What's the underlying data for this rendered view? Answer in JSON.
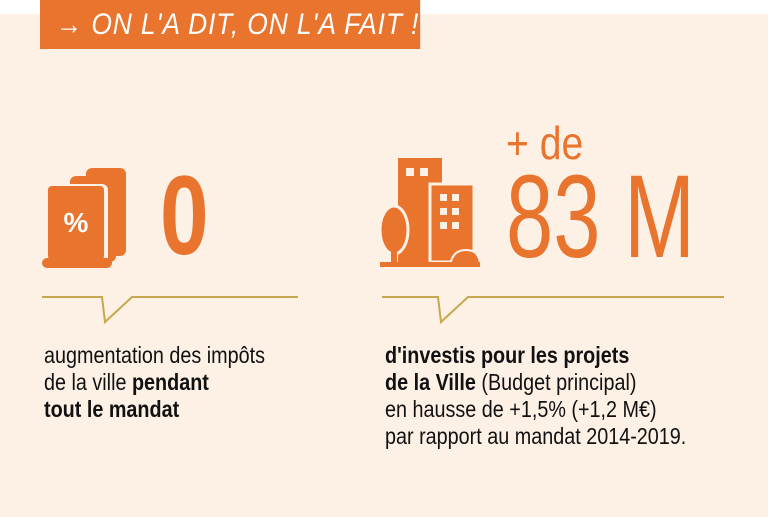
{
  "banner": {
    "arrow": "→",
    "text": "ON L'A DIT, ON L'A FAIT !"
  },
  "colors": {
    "accent": "#e8742e",
    "background": "#fdf1e6",
    "line": "#c8a84e",
    "text": "#111111"
  },
  "stat_left": {
    "icon": "tax-percent-document-icon",
    "value": "0",
    "line1_a": "augmentation des impôts",
    "line2_a": "de la ville ",
    "line2_b": "pendant",
    "line3_a": "tout le mandat"
  },
  "stat_right": {
    "icon": "city-buildings-icon",
    "prefix": "+ de",
    "value": "83 M",
    "line1_a": "d'investis pour les projets",
    "line2_a": "de la Ville",
    "line2_b": " (Budget principal)",
    "line3_a": "en hausse de +1,5% (+1,2 M€)",
    "line4_a": "par rapport au mandat 2014-2019."
  }
}
